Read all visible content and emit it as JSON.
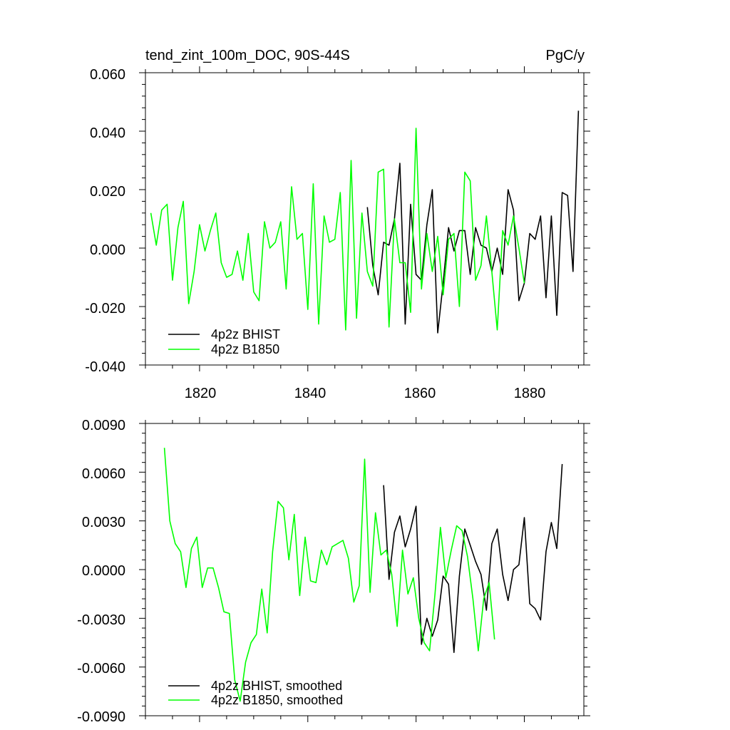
{
  "chart_data": [
    {
      "type": "line",
      "title": "tend_zint_100m_DOC, 90S-44S",
      "units": "PgC/y",
      "xlim": [
        1810,
        1891
      ],
      "ylim": [
        -0.04,
        0.06
      ],
      "xticks": [
        1820,
        1840,
        1860,
        1880
      ],
      "yticks": [
        -0.04,
        -0.02,
        0.0,
        0.02,
        0.04,
        0.06
      ],
      "ytick_labels": [
        "-0.040",
        "-0.020",
        "0.000",
        "0.020",
        "0.040",
        "0.060"
      ],
      "xtick_labels": [
        "1820",
        "1840",
        "1860",
        "1880"
      ],
      "legend": [
        "4p2z BHIST",
        "4p2z B1850"
      ],
      "legend_position": "bottom-left",
      "series": [
        {
          "name": "4p2z BHIST",
          "color": "#000000",
          "x0": 1851,
          "values": [
            0.014,
            -0.006,
            -0.016,
            0.002,
            0.001,
            0.01,
            0.029,
            -0.026,
            0.015,
            -0.009,
            -0.011,
            0.008,
            0.02,
            -0.029,
            -0.012,
            0.007,
            -0.001,
            0.006,
            0.006,
            -0.009,
            0.007,
            0.001,
            0.0,
            -0.008,
            0.0,
            -0.009,
            0.02,
            0.013,
            -0.018,
            -0.012,
            0.005,
            0.003,
            0.011,
            -0.017,
            0.011,
            -0.023,
            0.019,
            0.018,
            -0.008,
            0.047
          ]
        },
        {
          "name": "4p2z B1850",
          "color": "#00ff00",
          "x0": 1811,
          "values": [
            0.012,
            0.001,
            0.013,
            0.015,
            -0.011,
            0.007,
            0.016,
            -0.019,
            -0.008,
            0.008,
            -0.001,
            0.006,
            0.012,
            -0.005,
            -0.01,
            -0.009,
            -0.001,
            -0.011,
            0.005,
            -0.015,
            -0.018,
            0.009,
            0.0,
            0.002,
            0.009,
            -0.014,
            0.021,
            0.003,
            0.005,
            -0.021,
            0.022,
            -0.026,
            0.011,
            0.002,
            0.003,
            0.019,
            -0.028,
            0.03,
            -0.024,
            0.012,
            -0.008,
            -0.013,
            0.026,
            0.027,
            -0.027,
            0.01,
            -0.005,
            -0.005,
            -0.022,
            0.041,
            -0.014,
            0.005,
            -0.008,
            0.004,
            -0.016,
            0.003,
            0.005,
            -0.02,
            0.026,
            0.023,
            -0.011,
            -0.006,
            0.011,
            -0.008,
            -0.028,
            0.006,
            0.001,
            0.011,
            0.0,
            -0.012
          ]
        }
      ]
    },
    {
      "type": "line",
      "title": "",
      "xlim": [
        1810,
        1891
      ],
      "ylim": [
        -0.009,
        0.009
      ],
      "xticks": [
        1820,
        1840,
        1860,
        1880
      ],
      "yticks": [
        -0.009,
        -0.006,
        -0.003,
        0.0,
        0.003,
        0.006,
        0.009
      ],
      "ytick_labels": [
        "-0.0090",
        "-0.0060",
        "-0.0030",
        "0.0000",
        "0.0030",
        "0.0060",
        "0.0090"
      ],
      "legend": [
        "4p2z BHIST, smoothed",
        "4p2z B1850, smoothed"
      ],
      "legend_position": "bottom-left",
      "series": [
        {
          "name": "4p2z BHIST, smoothed",
          "color": "#000000",
          "x0": 1854,
          "values": [
            0.0052,
            -0.0006,
            0.0023,
            0.0033,
            0.0014,
            0.0025,
            0.0039,
            -0.0046,
            -0.003,
            -0.0041,
            -0.0031,
            -0.0004,
            -0.0009,
            -0.0051,
            -0.0004,
            0.0025,
            0.0015,
            0.0005,
            -0.0003,
            -0.0025,
            0.0016,
            0.0025,
            -0.0003,
            -0.0019,
            0.0,
            0.0003,
            0.0032,
            -0.0021,
            -0.0024,
            -0.0031,
            0.0011,
            0.0029,
            0.0013,
            0.0065
          ]
        },
        {
          "name": "4p2z B1850, smoothed",
          "color": "#00ff00",
          "x0": 1813.5,
          "values": [
            0.0075,
            0.003,
            0.0016,
            0.0011,
            -0.0011,
            0.0013,
            0.002,
            -0.0011,
            0.0001,
            0.0001,
            -0.0011,
            -0.0026,
            -0.0027,
            -0.0068,
            -0.0081,
            -0.0057,
            -0.0045,
            -0.004,
            -0.0012,
            -0.0039,
            0.0011,
            0.0042,
            0.0038,
            0.0006,
            0.0034,
            -0.0016,
            0.002,
            -0.0007,
            -0.0008,
            0.0012,
            0.0003,
            0.0014,
            0.0016,
            0.0018,
            0.0007,
            -0.002,
            -0.001,
            0.0068,
            -0.0014,
            0.0035,
            0.0009,
            0.0012,
            -0.0003,
            -0.0035,
            0.0012,
            -0.0015,
            -0.0005,
            -0.003,
            -0.0045,
            -0.005,
            -0.0015,
            0.0026,
            -0.0005,
            0.0012,
            0.0027,
            0.0024,
            0.0008,
            -0.0018,
            -0.005,
            -0.0018,
            -0.0008,
            -0.0043
          ]
        }
      ]
    }
  ]
}
